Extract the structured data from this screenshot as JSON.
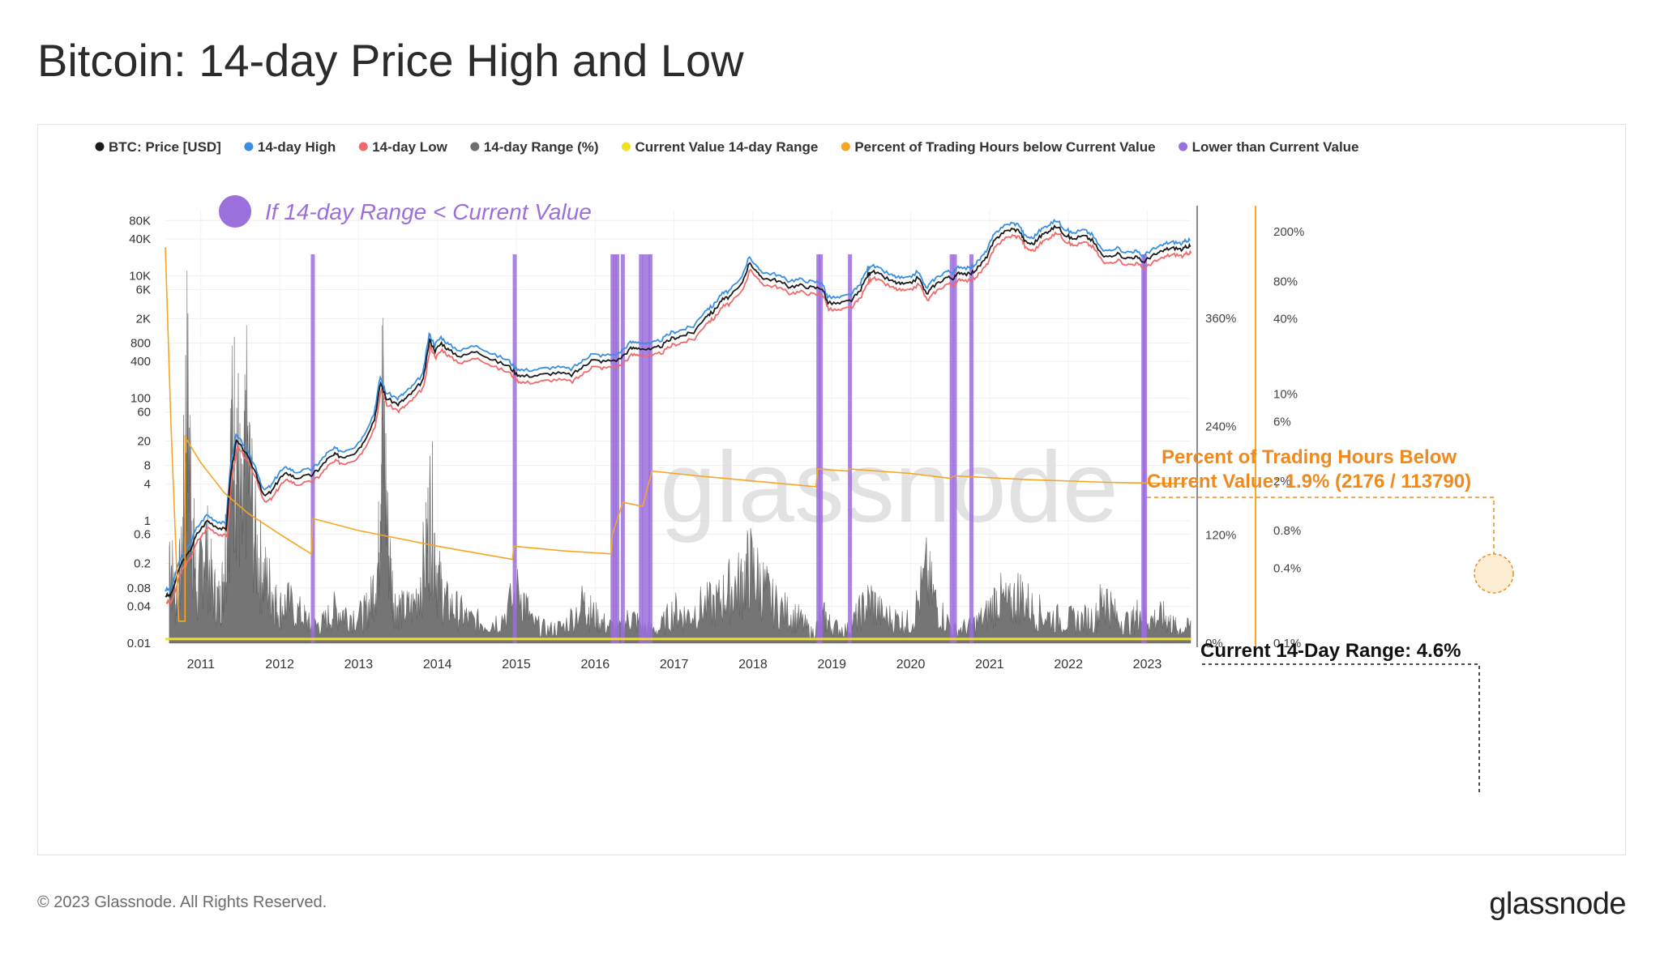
{
  "page": {
    "title": "Bitcoin: 14-day Price High and Low",
    "copyright": "© 2023 Glassnode. All Rights Reserved.",
    "logo": "glassnode",
    "watermark": "glassnode"
  },
  "colors": {
    "price": "#1a1a1a",
    "high": "#3a8fe0",
    "low": "#ef6a6a",
    "range": "#6e6e6e",
    "current": "#f0e020",
    "percent": "#f5a623",
    "lower": "#9b6fdc",
    "annotation_orange": "#f08a1c"
  },
  "chart_data": {
    "type": "line",
    "title": "Bitcoin: 14-day Price High and Low",
    "legend": [
      {
        "name": "BTC: Price [USD]",
        "color": "#1a1a1a"
      },
      {
        "name": "14-day High",
        "color": "#3a8fe0"
      },
      {
        "name": "14-day Low",
        "color": "#ef6a6a"
      },
      {
        "name": "14-day Range (%)",
        "color": "#6e6e6e"
      },
      {
        "name": "Current Value 14-day Range",
        "color": "#f0e020"
      },
      {
        "name": "Percent of Trading Hours below Current Value",
        "color": "#f5a623"
      },
      {
        "name": "Lower than Current Value",
        "color": "#9b6fdc"
      }
    ],
    "legend_placement": "top",
    "x_ticks": [
      "2011",
      "2012",
      "2013",
      "2014",
      "2015",
      "2016",
      "2017",
      "2018",
      "2019",
      "2020",
      "2021",
      "2022",
      "2023"
    ],
    "x_range": [
      2010.55,
      2023.55
    ],
    "y_left": {
      "scale": "log",
      "range": [
        0.01,
        120000
      ],
      "ticks": [
        "80K",
        "40K",
        "10K",
        "6K",
        "2K",
        "800",
        "400",
        "100",
        "60",
        "20",
        "8",
        "4",
        "1",
        "0.6",
        "0.2",
        "0.08",
        "0.04",
        "0.01"
      ]
    },
    "y_right1": {
      "scale": "linear",
      "range": [
        0,
        480
      ],
      "ticks": [
        "360%",
        "240%",
        "120%",
        "0%"
      ]
    },
    "y_right2": {
      "scale": "log",
      "range": [
        0.1,
        300
      ],
      "ticks": [
        "200%",
        "80%",
        "40%",
        "10%",
        "6%",
        "2%",
        "0.8%",
        "0.4%",
        "0.1%"
      ]
    },
    "grid": true,
    "series": [
      {
        "name": "BTC: Price [USD]",
        "axis": "left",
        "points": [
          [
            2010.55,
            0.06
          ],
          [
            2010.62,
            0.06
          ],
          [
            2010.75,
            0.2
          ],
          [
            2010.85,
            0.3
          ],
          [
            2010.95,
            0.6
          ],
          [
            2011.08,
            1
          ],
          [
            2011.2,
            0.8
          ],
          [
            2011.32,
            0.7
          ],
          [
            2011.38,
            6
          ],
          [
            2011.45,
            20
          ],
          [
            2011.55,
            14
          ],
          [
            2011.7,
            6
          ],
          [
            2011.8,
            2.5
          ],
          [
            2011.9,
            3
          ],
          [
            2012.0,
            5
          ],
          [
            2012.1,
            6
          ],
          [
            2012.2,
            5
          ],
          [
            2012.4,
            5.5
          ],
          [
            2012.5,
            7
          ],
          [
            2012.6,
            10
          ],
          [
            2012.7,
            12
          ],
          [
            2012.8,
            11
          ],
          [
            2012.95,
            13
          ],
          [
            2013.05,
            18
          ],
          [
            2013.2,
            45
          ],
          [
            2013.28,
            180
          ],
          [
            2013.35,
            100
          ],
          [
            2013.5,
            80
          ],
          [
            2013.6,
            100
          ],
          [
            2013.7,
            130
          ],
          [
            2013.82,
            200
          ],
          [
            2013.9,
            900
          ],
          [
            2013.97,
            600
          ],
          [
            2014.05,
            800
          ],
          [
            2014.15,
            600
          ],
          [
            2014.3,
            480
          ],
          [
            2014.5,
            600
          ],
          [
            2014.7,
            420
          ],
          [
            2014.9,
            340
          ],
          [
            2015.0,
            250
          ],
          [
            2015.1,
            230
          ],
          [
            2015.3,
            240
          ],
          [
            2015.5,
            260
          ],
          [
            2015.7,
            240
          ],
          [
            2015.85,
            330
          ],
          [
            2015.95,
            420
          ],
          [
            2016.1,
            400
          ],
          [
            2016.3,
            430
          ],
          [
            2016.45,
            650
          ],
          [
            2016.55,
            670
          ],
          [
            2016.7,
            610
          ],
          [
            2016.85,
            730
          ],
          [
            2016.97,
            950
          ],
          [
            2017.1,
            1050
          ],
          [
            2017.25,
            1200
          ],
          [
            2017.4,
            2200
          ],
          [
            2017.5,
            2600
          ],
          [
            2017.6,
            4000
          ],
          [
            2017.7,
            4500
          ],
          [
            2017.85,
            7000
          ],
          [
            2017.96,
            17000
          ],
          [
            2018.05,
            11000
          ],
          [
            2018.15,
            9000
          ],
          [
            2018.3,
            8500
          ],
          [
            2018.45,
            6700
          ],
          [
            2018.6,
            7000
          ],
          [
            2018.75,
            6400
          ],
          [
            2018.88,
            6300
          ],
          [
            2018.95,
            3600
          ],
          [
            2019.1,
            3500
          ],
          [
            2019.25,
            4000
          ],
          [
            2019.35,
            5500
          ],
          [
            2019.45,
            10000
          ],
          [
            2019.5,
            12000
          ],
          [
            2019.6,
            10500
          ],
          [
            2019.75,
            8300
          ],
          [
            2019.85,
            7500
          ],
          [
            2019.97,
            7200
          ],
          [
            2020.1,
            9500
          ],
          [
            2020.2,
            5000
          ],
          [
            2020.3,
            7000
          ],
          [
            2020.45,
            9500
          ],
          [
            2020.55,
            9200
          ],
          [
            2020.62,
            11500
          ],
          [
            2020.75,
            10500
          ],
          [
            2020.85,
            13500
          ],
          [
            2020.95,
            19000
          ],
          [
            2021.05,
            35000
          ],
          [
            2021.15,
            50000
          ],
          [
            2021.28,
            58000
          ],
          [
            2021.38,
            55000
          ],
          [
            2021.45,
            36000
          ],
          [
            2021.55,
            33000
          ],
          [
            2021.65,
            45000
          ],
          [
            2021.75,
            55000
          ],
          [
            2021.86,
            65000
          ],
          [
            2021.95,
            48000
          ],
          [
            2022.05,
            40000
          ],
          [
            2022.2,
            45000
          ],
          [
            2022.3,
            38000
          ],
          [
            2022.45,
            20000
          ],
          [
            2022.6,
            23000
          ],
          [
            2022.75,
            19500
          ],
          [
            2022.85,
            20500
          ],
          [
            2022.95,
            16800
          ],
          [
            2023.05,
            21000
          ],
          [
            2023.15,
            23500
          ],
          [
            2023.25,
            27500
          ],
          [
            2023.35,
            28500
          ],
          [
            2023.45,
            26800
          ],
          [
            2023.5,
            30500
          ],
          [
            2023.55,
            30300
          ]
        ]
      },
      {
        "name": "14-day Range (%)",
        "axis": "right1",
        "points": [
          [
            2010.6,
            150
          ],
          [
            2010.68,
            60
          ],
          [
            2010.76,
            120
          ],
          [
            2010.82,
            380
          ],
          [
            2010.9,
            170
          ],
          [
            2010.95,
            60
          ],
          [
            2011.05,
            160
          ],
          [
            2011.15,
            80
          ],
          [
            2011.25,
            60
          ],
          [
            2011.3,
            120
          ],
          [
            2011.38,
            280
          ],
          [
            2011.45,
            330
          ],
          [
            2011.52,
            160
          ],
          [
            2011.58,
            300
          ],
          [
            2011.7,
            140
          ],
          [
            2011.8,
            100
          ],
          [
            2011.9,
            80
          ],
          [
            2011.98,
            50
          ],
          [
            2012.1,
            60
          ],
          [
            2012.3,
            40
          ],
          [
            2012.4,
            25
          ],
          [
            2012.55,
            30
          ],
          [
            2012.7,
            50
          ],
          [
            2012.85,
            45
          ],
          [
            2013.05,
            40
          ],
          [
            2013.15,
            60
          ],
          [
            2013.25,
            120
          ],
          [
            2013.3,
            360
          ],
          [
            2013.38,
            140
          ],
          [
            2013.45,
            60
          ],
          [
            2013.55,
            50
          ],
          [
            2013.7,
            55
          ],
          [
            2013.85,
            130
          ],
          [
            2013.92,
            210
          ],
          [
            2014.0,
            100
          ],
          [
            2014.1,
            60
          ],
          [
            2014.25,
            50
          ],
          [
            2014.4,
            35
          ],
          [
            2014.6,
            30
          ],
          [
            2014.8,
            35
          ],
          [
            2015.05,
            80
          ],
          [
            2015.2,
            30
          ],
          [
            2015.4,
            20
          ],
          [
            2015.6,
            25
          ],
          [
            2015.85,
            60
          ],
          [
            2015.95,
            45
          ],
          [
            2016.1,
            30
          ],
          [
            2016.3,
            20
          ],
          [
            2016.45,
            40
          ],
          [
            2016.6,
            25
          ],
          [
            2016.8,
            20
          ],
          [
            2017.0,
            50
          ],
          [
            2017.15,
            40
          ],
          [
            2017.35,
            55
          ],
          [
            2017.55,
            60
          ],
          [
            2017.7,
            80
          ],
          [
            2017.85,
            90
          ],
          [
            2017.96,
            115
          ],
          [
            2018.1,
            90
          ],
          [
            2018.25,
            60
          ],
          [
            2018.45,
            45
          ],
          [
            2018.6,
            35
          ],
          [
            2018.75,
            15
          ],
          [
            2018.9,
            40
          ],
          [
            2019.0,
            25
          ],
          [
            2019.2,
            20
          ],
          [
            2019.35,
            45
          ],
          [
            2019.5,
            65
          ],
          [
            2019.65,
            40
          ],
          [
            2019.85,
            35
          ],
          [
            2020.0,
            30
          ],
          [
            2020.2,
            100
          ],
          [
            2020.35,
            50
          ],
          [
            2020.55,
            20
          ],
          [
            2020.75,
            25
          ],
          [
            2020.95,
            40
          ],
          [
            2021.1,
            70
          ],
          [
            2021.25,
            55
          ],
          [
            2021.38,
            75
          ],
          [
            2021.55,
            50
          ],
          [
            2021.75,
            40
          ],
          [
            2021.95,
            35
          ],
          [
            2022.15,
            35
          ],
          [
            2022.35,
            40
          ],
          [
            2022.45,
            75
          ],
          [
            2022.6,
            40
          ],
          [
            2022.8,
            30
          ],
          [
            2022.9,
            50
          ],
          [
            2023.05,
            35
          ],
          [
            2023.2,
            40
          ],
          [
            2023.3,
            30
          ],
          [
            2023.4,
            20
          ],
          [
            2023.55,
            25
          ]
        ]
      },
      {
        "name": "Current Value 14-day Range",
        "axis": "right1",
        "points": [
          [
            2010.55,
            4.6
          ],
          [
            2023.55,
            4.6
          ]
        ]
      },
      {
        "name": "Percent of Trading Hours below Current Value",
        "axis": "right2",
        "points": [
          [
            2010.55,
            150
          ],
          [
            2010.62,
            6
          ],
          [
            2010.72,
            0.15
          ],
          [
            2010.8,
            0.15
          ],
          [
            2010.8,
            4.5
          ],
          [
            2011.0,
            2.8
          ],
          [
            2011.3,
            1.6
          ],
          [
            2011.6,
            1.1
          ],
          [
            2012.0,
            0.75
          ],
          [
            2012.4,
            0.52
          ],
          [
            2012.42,
            1
          ],
          [
            2013.0,
            0.8
          ],
          [
            2014.0,
            0.6
          ],
          [
            2014.95,
            0.47
          ],
          [
            2014.97,
            0.6
          ],
          [
            2015.6,
            0.55
          ],
          [
            2016.2,
            0.52
          ],
          [
            2016.22,
            0.75
          ],
          [
            2016.35,
            1.35
          ],
          [
            2016.6,
            1.25
          ],
          [
            2016.72,
            2.4
          ],
          [
            2017.3,
            2.2
          ],
          [
            2018.0,
            2.0
          ],
          [
            2018.8,
            1.8
          ],
          [
            2018.82,
            2.5
          ],
          [
            2019.2,
            2.4
          ],
          [
            2019.22,
            2.5
          ],
          [
            2020.0,
            2.3
          ],
          [
            2020.5,
            2.1
          ],
          [
            2020.55,
            2.2
          ],
          [
            2021.5,
            2.05
          ],
          [
            2022.5,
            1.95
          ],
          [
            2023.5,
            1.9
          ]
        ]
      },
      {
        "name": "Lower than Current Value",
        "axis": "left",
        "dates": [
          2012.42,
          2014.98,
          2016.22,
          2016.25,
          2016.28,
          2016.35,
          2016.58,
          2016.62,
          2016.67,
          2016.7,
          2018.83,
          2018.86,
          2019.23,
          2020.52,
          2020.56,
          2020.77,
          2022.95,
          2022.97
        ]
      }
    ],
    "annotations": {
      "legend_note": "If 14-day Range < Current Value",
      "percent_label_line1": "Percent of Trading Hours Below",
      "percent_label_line2": "Current Value: 1.9% (2176 / 113790)",
      "current_label": "Current 14-Day Range: 4.6%"
    }
  }
}
